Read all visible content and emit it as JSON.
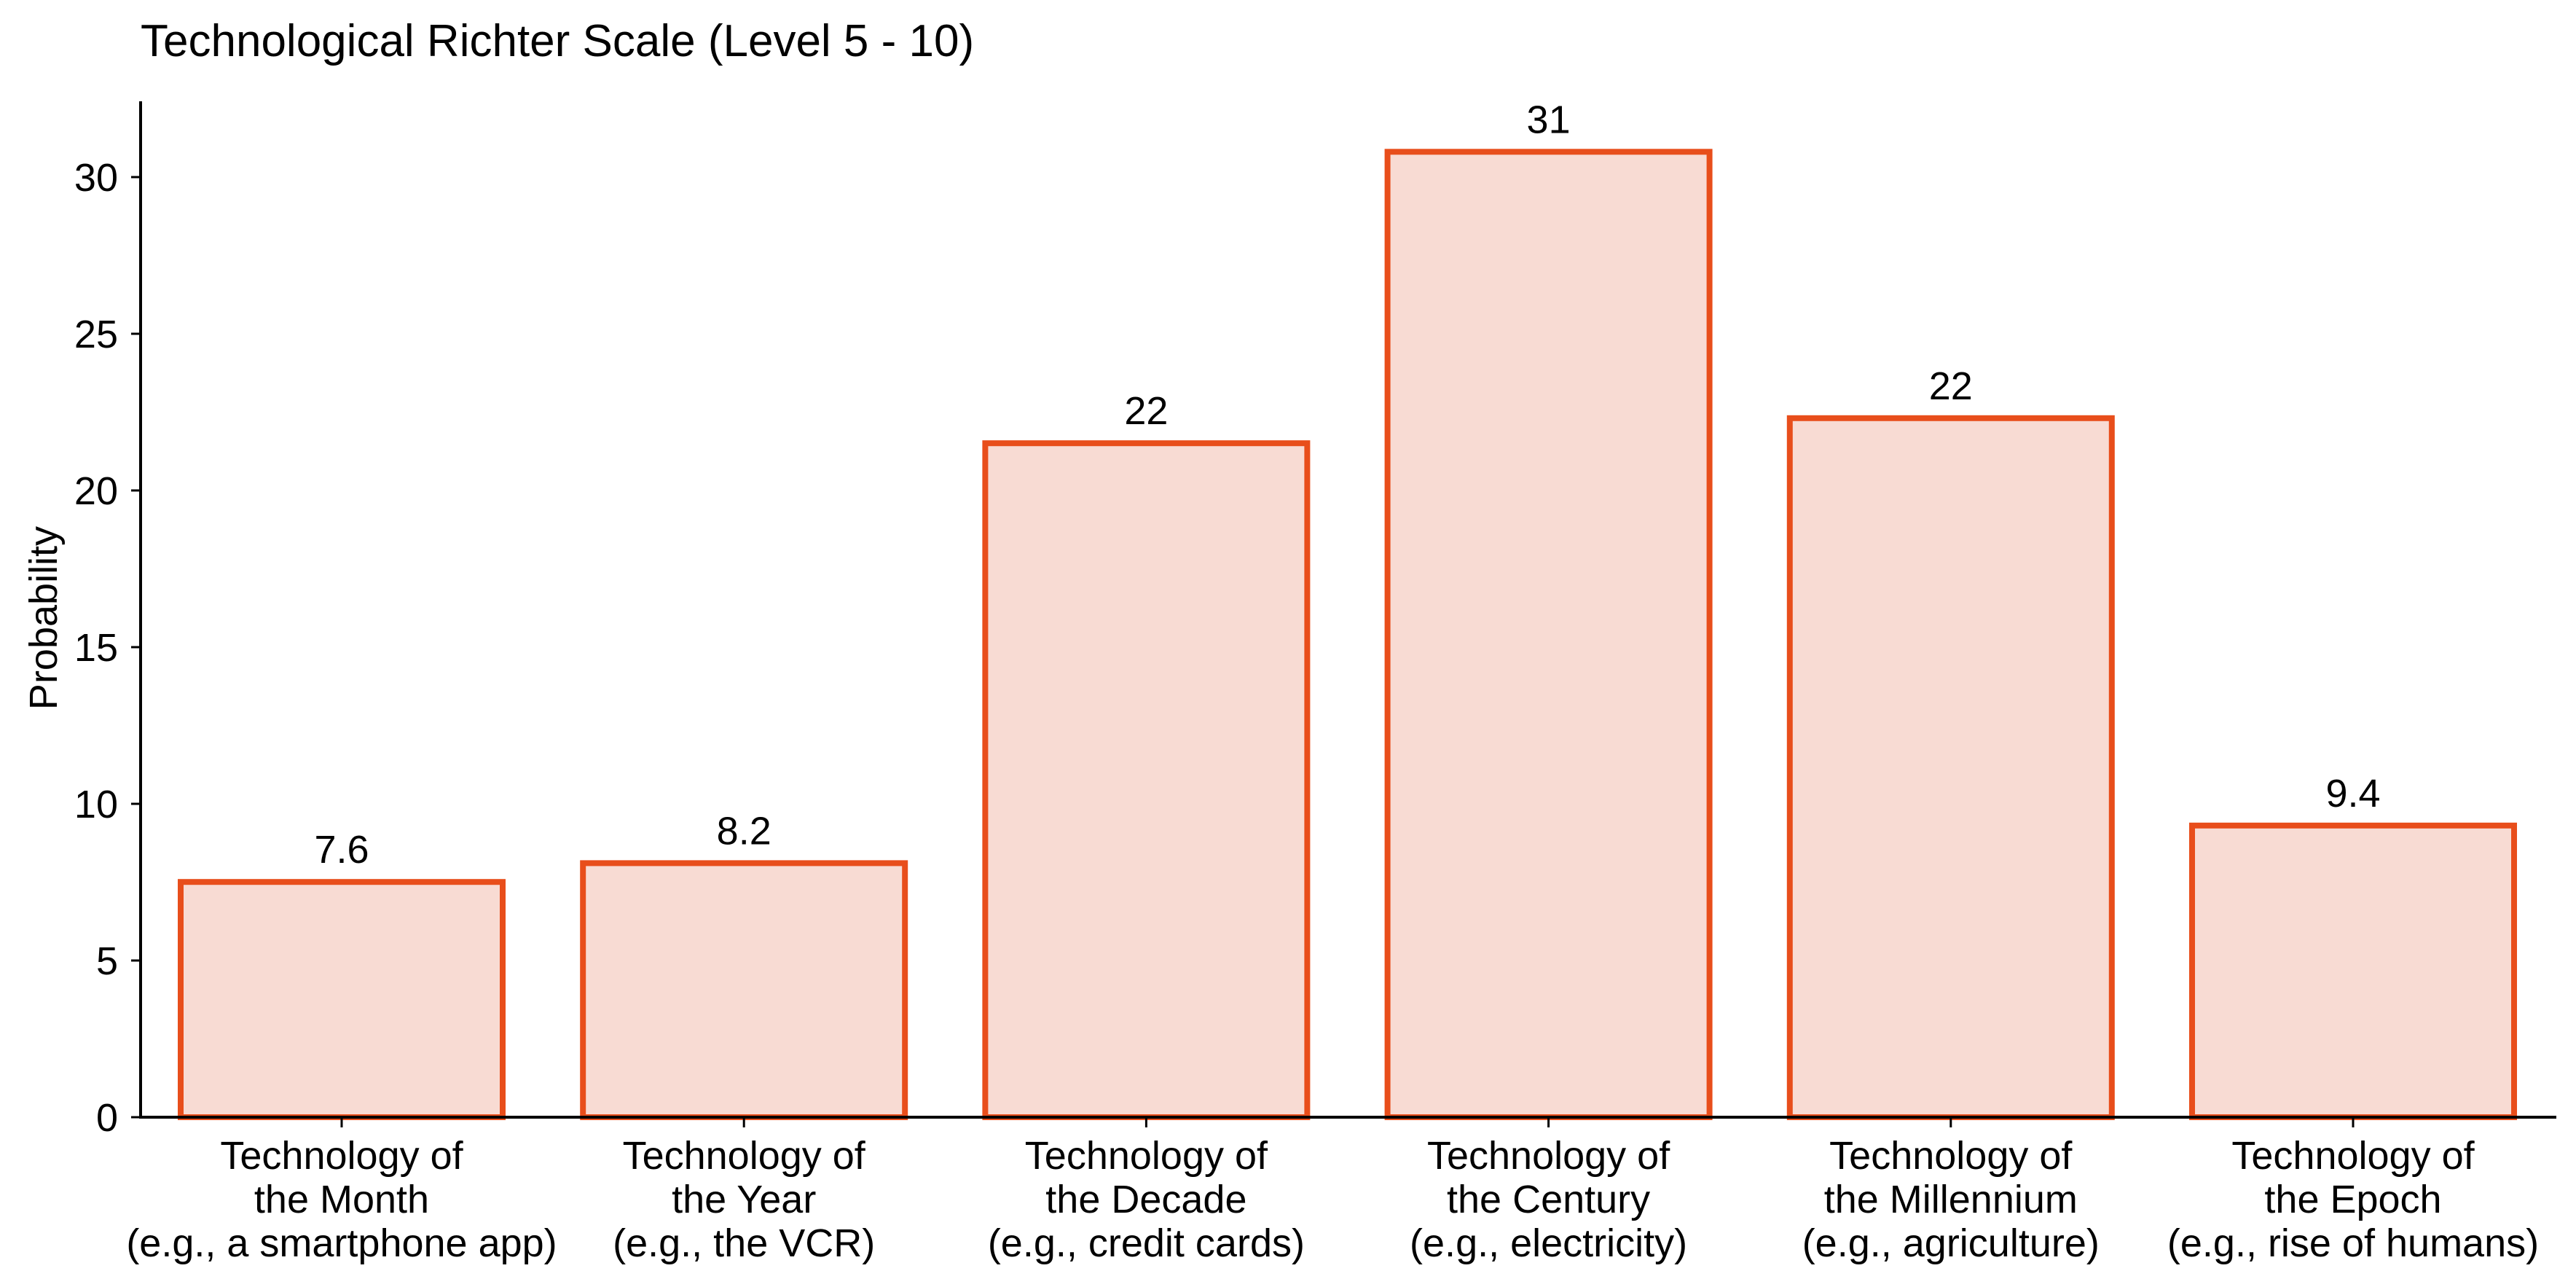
{
  "chart_data": {
    "type": "bar",
    "title": "Technological Richter Scale (Level 5 - 10)",
    "xlabel": "",
    "ylabel": "Probability",
    "ylim": [
      0,
      32.4
    ],
    "yticks": [
      0,
      5,
      10,
      15,
      20,
      25,
      30
    ],
    "grid": false,
    "legend": null,
    "categories": [
      [
        "Technology of",
        "the Month",
        "(e.g., a smartphone app)"
      ],
      [
        "Technology of",
        "the Year",
        "(e.g., the VCR)"
      ],
      [
        "Technology of",
        "the Decade",
        "(e.g., credit cards)"
      ],
      [
        "Technology of",
        "the Century",
        "(e.g., electricity)"
      ],
      [
        "Technology of",
        "the Millennium",
        "(e.g., agriculture)"
      ],
      [
        "Technology of",
        "the Epoch",
        "(e.g., rise of humans)"
      ]
    ],
    "values": [
      7.6,
      8.2,
      21.6,
      30.9,
      22.4,
      9.4
    ],
    "value_labels": [
      "7.6",
      "8.2",
      "22",
      "31",
      "22",
      "9.4"
    ]
  },
  "colors": {
    "bar_edge": "#E84E1B",
    "bar_fill": "#F8DBD3",
    "axis": "#000000",
    "text": "#000000"
  }
}
